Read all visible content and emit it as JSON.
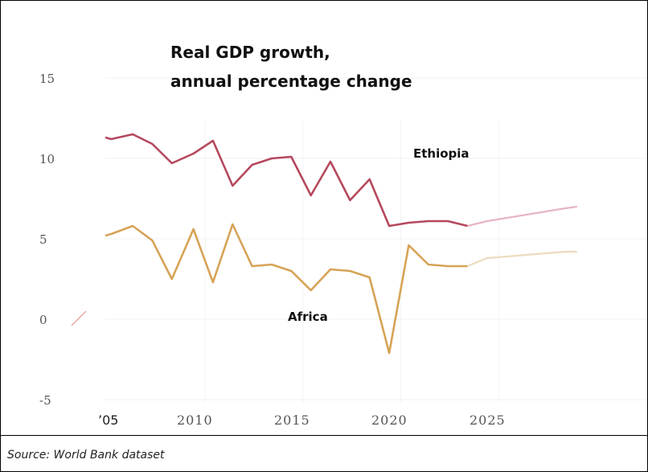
{
  "chart_data": {
    "type": "line",
    "title": "Real GDP growth,",
    "subtitle": "annual percentage change",
    "xlabel": "",
    "ylabel": "",
    "xlim": [
      2005,
      2029
    ],
    "ylim": [
      -5,
      15
    ],
    "y_ticks": [
      "15",
      "10",
      "5",
      "0",
      "-5"
    ],
    "x_ticks": [
      "’05",
      "2010",
      "2015",
      "2020",
      "2025"
    ],
    "x_tick_values": [
      2005,
      2010,
      2015,
      2020,
      2025
    ],
    "y_tick_values": [
      15,
      10,
      5,
      0,
      -5
    ],
    "grid": true,
    "series": [
      {
        "name": "Ethiopia",
        "color": "#b5485e",
        "projection_color": "#e7b5c2",
        "x": [
          2004.9,
          2005.2,
          2006.3,
          2007.3,
          2008.3,
          2009.4,
          2010.4,
          2011.4,
          2012.4,
          2013.4,
          2014.4,
          2015.4,
          2016.4,
          2017.4,
          2018.4,
          2019.4,
          2020.4,
          2021.4,
          2022.4,
          2023.4
        ],
        "values": [
          11.3,
          11.2,
          11.5,
          10.9,
          9.7,
          10.3,
          11.1,
          8.3,
          9.6,
          10.0,
          10.1,
          7.7,
          9.8,
          7.4,
          8.7,
          5.8,
          6.0,
          6.1,
          6.1,
          5.8
        ],
        "projection_x": [
          2023.4,
          2024.4,
          2025.4,
          2026.4,
          2027.4,
          2028.4,
          2029.0
        ],
        "projection_values": [
          5.8,
          6.1,
          6.3,
          6.5,
          6.7,
          6.9,
          7.0
        ]
      },
      {
        "name": "Africa",
        "color": "#d6a356",
        "projection_color": "#ecdcbf",
        "x": [
          2004.9,
          2005.2,
          2006.3,
          2007.3,
          2008.3,
          2009.4,
          2010.4,
          2011.4,
          2012.4,
          2013.4,
          2014.4,
          2015.4,
          2016.4,
          2017.4,
          2018.4,
          2019.4,
          2020.4,
          2021.4,
          2022.4,
          2023.4
        ],
        "values": [
          5.2,
          5.3,
          5.8,
          4.9,
          2.5,
          5.6,
          2.3,
          5.9,
          3.3,
          3.4,
          3.0,
          1.8,
          3.1,
          3.0,
          2.6,
          -2.1,
          4.6,
          3.4,
          3.3,
          3.3
        ],
        "projection_x": [
          2023.4,
          2024.4,
          2025.4,
          2026.4,
          2027.4,
          2028.4,
          2029.0
        ],
        "projection_values": [
          3.3,
          3.8,
          3.9,
          4.0,
          4.1,
          4.2,
          4.2
        ]
      }
    ]
  },
  "source": "Source: World Bank dataset"
}
